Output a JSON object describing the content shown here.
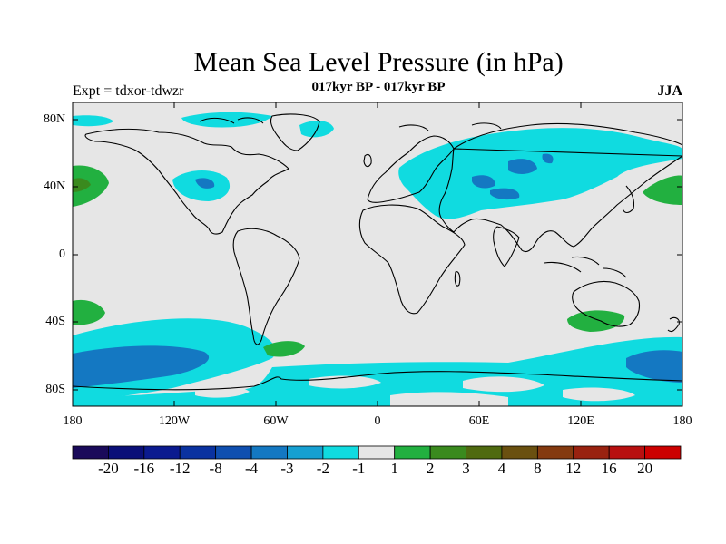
{
  "title": "Mean Sea Level Pressure (in hPa)",
  "subtitle": "017kyr BP - 017kyr BP",
  "experiment_label": "Expt = tdxor-tdwzr",
  "season_label": "JJA",
  "lat_ticks": [
    "80N",
    "40N",
    "0",
    "40S",
    "80S"
  ],
  "lon_ticks": [
    "180",
    "120W",
    "60W",
    "0",
    "60E",
    "120E",
    "180"
  ],
  "colorbar": {
    "colors": [
      "#1a0a5a",
      "#0a0f78",
      "#0b1a8f",
      "#0a32a0",
      "#0f4fb0",
      "#1478c2",
      "#16a0d2",
      "#10dbe0",
      "#e6e6e6",
      "#22b040",
      "#3a8a1e",
      "#4f6a10",
      "#6a5010",
      "#843a10",
      "#992210",
      "#b81010",
      "#cc0000"
    ],
    "labels": [
      "-20",
      "-16",
      "-12",
      "-8",
      "-4",
      "-3",
      "-2",
      "-1",
      "1",
      "2",
      "3",
      "4",
      "8",
      "12",
      "16",
      "20"
    ]
  },
  "map_colors": {
    "background": "#e6e6e6",
    "dark_blue": "#1478c2",
    "cyan": "#10dbe0",
    "green": "#22b040",
    "dark_green": "#3a8a1e",
    "coast": "#000000"
  }
}
